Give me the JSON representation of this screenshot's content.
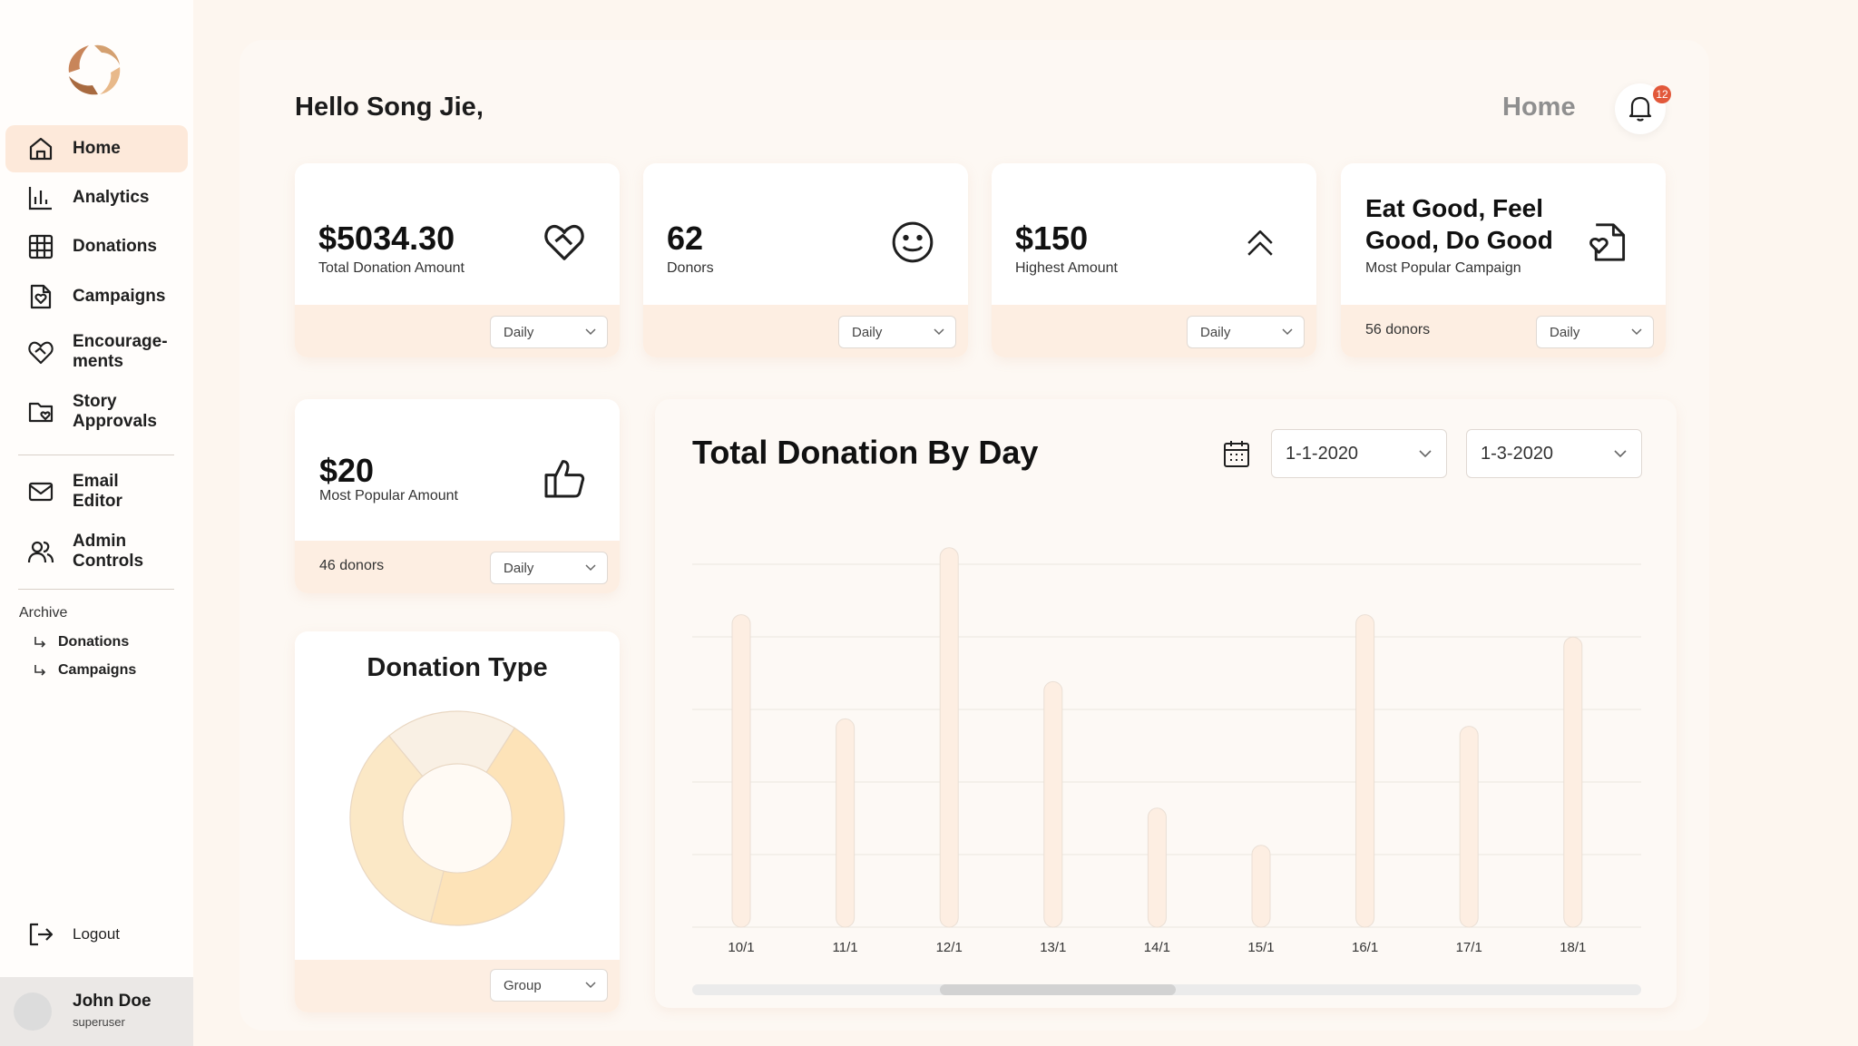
{
  "sidebar": {
    "items": [
      {
        "label": "Home",
        "icon": "home-icon"
      },
      {
        "label": "Analytics",
        "icon": "analytics-icon"
      },
      {
        "label": "Donations",
        "icon": "grid-icon"
      },
      {
        "label": "Campaigns",
        "icon": "campaign-icon"
      },
      {
        "label": "Encourage-\nments",
        "icon": "heart-handshake-icon"
      },
      {
        "label": "Story\nApprovals",
        "icon": "folder-heart-icon"
      },
      {
        "label": "Email\nEditor",
        "icon": "mail-icon"
      },
      {
        "label": "Admin\nControls",
        "icon": "users-icon"
      }
    ],
    "archive": {
      "title": "Archive",
      "items": [
        "Donations",
        "Campaigns"
      ]
    },
    "logout_label": "Logout",
    "user": {
      "name": "John Doe",
      "role": "superuser"
    }
  },
  "header": {
    "greeting": "Hello Song Jie,",
    "breadcrumb": "Home",
    "notification_count": "12"
  },
  "stats": [
    {
      "value": "$5034.30",
      "label": "Total Donation Amount",
      "filter": "Daily",
      "icon": "heart-handshake-icon"
    },
    {
      "value": "62",
      "label": "Donors",
      "filter": "Daily",
      "icon": "smiley-icon"
    },
    {
      "value": "$150",
      "label": "Highest Amount",
      "filter": "Daily",
      "icon": "double-chevron-up-icon"
    },
    {
      "value": "Eat Good, Feel\nGood, Do Good",
      "label": "Most Popular Campaign",
      "donors": "56 donors",
      "filter": "Daily",
      "icon": "document-heart-icon"
    },
    {
      "value": "$20",
      "label": "Most Popular Amount",
      "donors": "46 donors",
      "filter": "Daily",
      "icon": "thumbs-up-icon"
    }
  ],
  "donation_type": {
    "title": "Donation Type",
    "filter": "Group",
    "slices": [
      0.2,
      0.45,
      0.35
    ],
    "colors": [
      "#f9f0e4",
      "#fde3b8",
      "#fbe8c6"
    ]
  },
  "chart_section": {
    "title": "Total Donation By Day",
    "date_from": "1-1-2020",
    "date_to": "1-3-2020"
  },
  "chart_data": {
    "type": "bar",
    "title": "Total Donation By Day",
    "categories": [
      "10/1",
      "11/1",
      "12/1",
      "13/1",
      "14/1",
      "15/1",
      "16/1",
      "17/1",
      "18/1"
    ],
    "values": [
      4.2,
      2.8,
      5.1,
      3.3,
      1.6,
      1.1,
      4.2,
      2.7,
      3.9
    ],
    "ylim": [
      0,
      5
    ],
    "grid": true,
    "bar_color": "#fdeee2"
  }
}
